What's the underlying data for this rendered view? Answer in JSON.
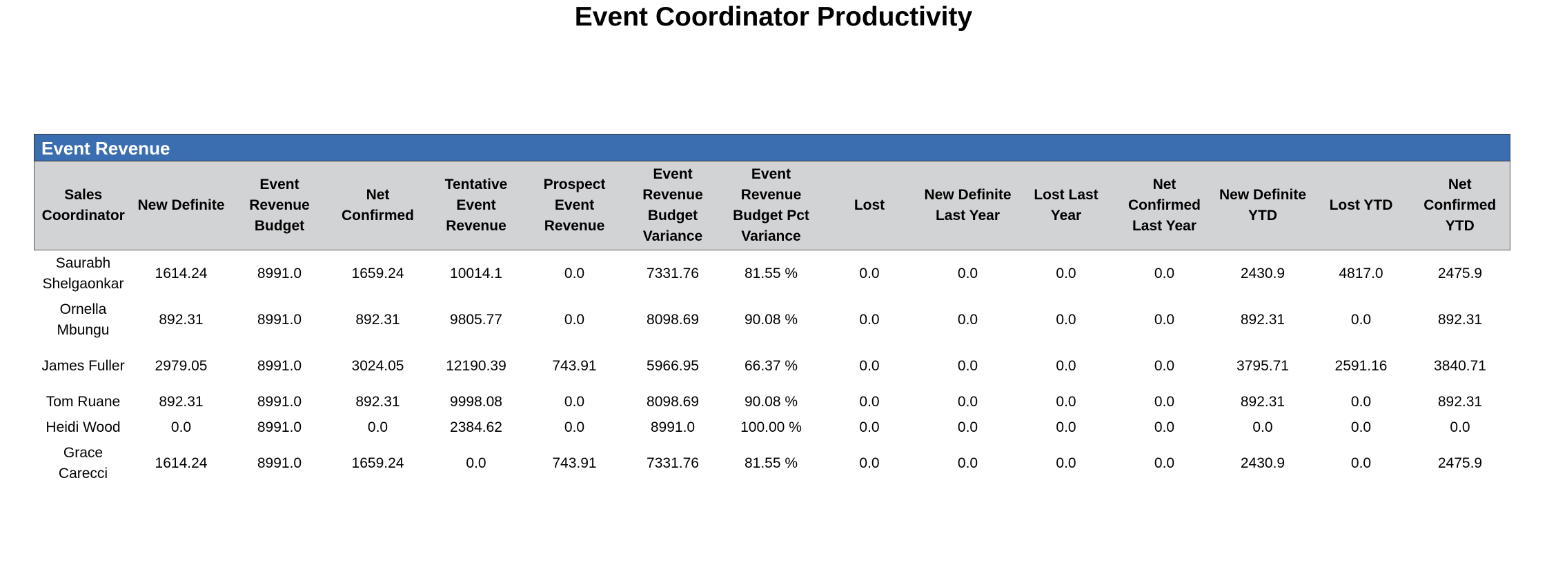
{
  "report": {
    "title": "Event Coordinator Productivity",
    "section_title": "Event Revenue",
    "columns": [
      "Sales Coordinator",
      "New Definite",
      "Event Revenue Budget",
      "Net Confirmed",
      "Tentative Event Revenue",
      "Prospect Event Revenue",
      "Event Revenue Budget Variance",
      "Event Revenue Budget Pct Variance",
      "Lost",
      "New Definite Last Year",
      "Lost Last Year",
      "Net Confirmed Last Year",
      "New Definite YTD",
      "Lost YTD",
      "Net Confirmed YTD"
    ],
    "rows": [
      [
        "Saurabh Shelgaonkar",
        "1614.24",
        "8991.0",
        "1659.24",
        "10014.1",
        "0.0",
        "7331.76",
        "81.55 %",
        "0.0",
        "0.0",
        "0.0",
        "0.0",
        "2430.9",
        "4817.0",
        "2475.9"
      ],
      [
        "Ornella Mbungu",
        "892.31",
        "8991.0",
        "892.31",
        "9805.77",
        "0.0",
        "8098.69",
        "90.08 %",
        "0.0",
        "0.0",
        "0.0",
        "0.0",
        "892.31",
        "0.0",
        "892.31"
      ],
      [
        "James Fuller",
        "2979.05",
        "8991.0",
        "3024.05",
        "12190.39",
        "743.91",
        "5966.95",
        "66.37 %",
        "0.0",
        "0.0",
        "0.0",
        "0.0",
        "3795.71",
        "2591.16",
        "3840.71"
      ],
      [
        "Tom Ruane",
        "892.31",
        "8991.0",
        "892.31",
        "9998.08",
        "0.0",
        "8098.69",
        "90.08 %",
        "0.0",
        "0.0",
        "0.0",
        "0.0",
        "892.31",
        "0.0",
        "892.31"
      ],
      [
        "Heidi Wood",
        "0.0",
        "8991.0",
        "0.0",
        "2384.62",
        "0.0",
        "8991.0",
        "100.00 %",
        "0.0",
        "0.0",
        "0.0",
        "0.0",
        "0.0",
        "0.0",
        "0.0"
      ],
      [
        "Grace Carecci",
        "1614.24",
        "8991.0",
        "1659.24",
        "0.0",
        "743.91",
        "7331.76",
        "81.55 %",
        "0.0",
        "0.0",
        "0.0",
        "0.0",
        "2430.9",
        "0.0",
        "2475.9"
      ]
    ]
  }
}
